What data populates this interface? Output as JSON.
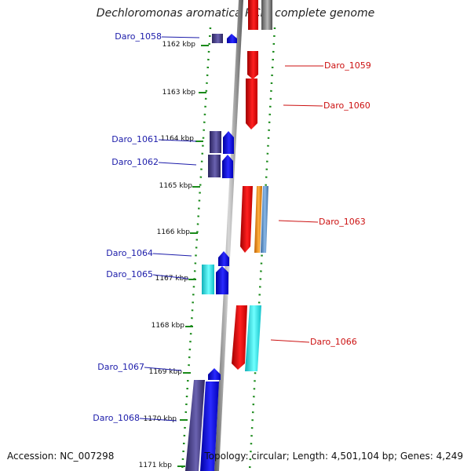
{
  "title": "Dechloromonas aromatica RCB, complete genome",
  "footer": {
    "accession": "Accession: NC_007298",
    "topology": "Topology: circular; Length: 4,501,104 bp; Genes: 4,249"
  },
  "colors": {
    "forward_gene": "#1a1adf",
    "reverse_gene": "#e01010",
    "dark_gene": "#4a3f8a",
    "cyan_gene": "#20e0e8",
    "orange_gene": "#f09020",
    "steel_gene": "#5a8fc8",
    "backbone": "#8a8a8a",
    "tick": "#1a8a1a",
    "left_label": "#1c1caa",
    "right_label": "#cc1111"
  },
  "icon": "genome-track-backbone",
  "ticks": [
    "1162 kbp",
    "1163 kbp",
    "1164 kbp",
    "1165 kbp",
    "1166 kbp",
    "1167 kbp",
    "1168 kbp",
    "1169 kbp",
    "1170 kbp",
    "1171 kbp"
  ],
  "genes_left": [
    "Daro_1058",
    "Daro_1061",
    "Daro_1062",
    "Daro_1064",
    "Daro_1065",
    "Daro_1067",
    "Daro_1068"
  ],
  "genes_right": [
    "Daro_1059",
    "Daro_1060",
    "Daro_1063",
    "Daro_1066"
  ]
}
